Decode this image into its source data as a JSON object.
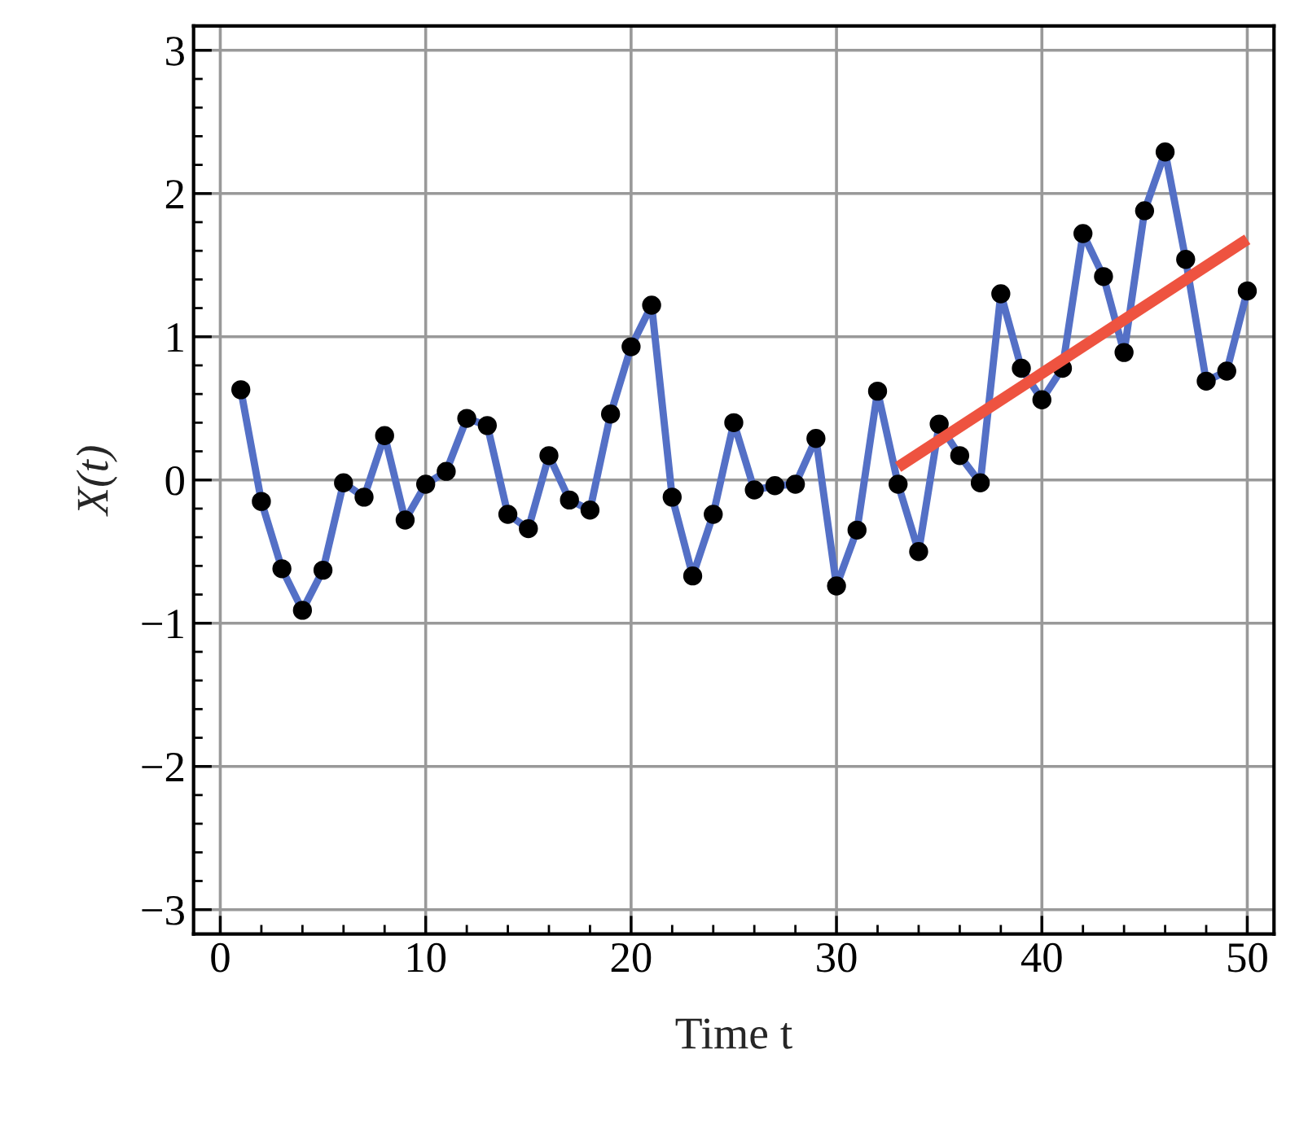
{
  "chart_data": {
    "type": "line",
    "xlabel": "Time t",
    "ylabel": "X(t)",
    "xlim": [
      -1.3,
      51.3
    ],
    "ylim": [
      -3.17,
      3.17
    ],
    "xticks": [
      0,
      10,
      20,
      30,
      40,
      50
    ],
    "yticks": [
      -3,
      -2,
      -1,
      0,
      1,
      2,
      3
    ],
    "grid": true,
    "legend": false,
    "marker": "circle",
    "line_style": "solid",
    "series": [
      {
        "color": "#5470c6",
        "x": [
          1,
          2,
          3,
          4,
          5,
          6,
          7,
          8,
          9,
          10,
          11,
          12,
          13,
          14,
          15,
          16,
          17,
          18,
          19,
          20,
          21,
          22,
          23,
          24,
          25,
          26,
          27,
          28,
          29,
          30,
          31,
          32,
          33,
          34,
          35,
          36,
          37,
          38,
          39,
          40,
          41,
          42,
          43,
          44,
          45,
          46,
          47,
          48,
          49,
          50
        ],
        "values": [
          0.63,
          -0.15,
          -0.62,
          -0.91,
          -0.63,
          -0.02,
          -0.12,
          0.31,
          -0.28,
          -0.03,
          0.06,
          0.43,
          0.38,
          -0.24,
          -0.34,
          0.17,
          -0.14,
          -0.21,
          0.46,
          0.93,
          1.22,
          -0.12,
          -0.67,
          -0.24,
          0.4,
          -0.07,
          -0.04,
          -0.03,
          0.29,
          -0.74,
          -0.35,
          0.62,
          -0.03,
          -0.5,
          0.39,
          0.17,
          -0.02,
          1.3,
          0.78,
          0.56,
          0.78,
          1.72,
          1.42,
          0.89,
          1.88,
          2.29,
          1.54,
          0.69,
          0.76,
          1.32
        ]
      },
      {
        "type": "line",
        "color": "#ee5340",
        "marker": "none",
        "x": [
          33,
          50
        ],
        "values": [
          0.09,
          1.68
        ]
      }
    ]
  }
}
